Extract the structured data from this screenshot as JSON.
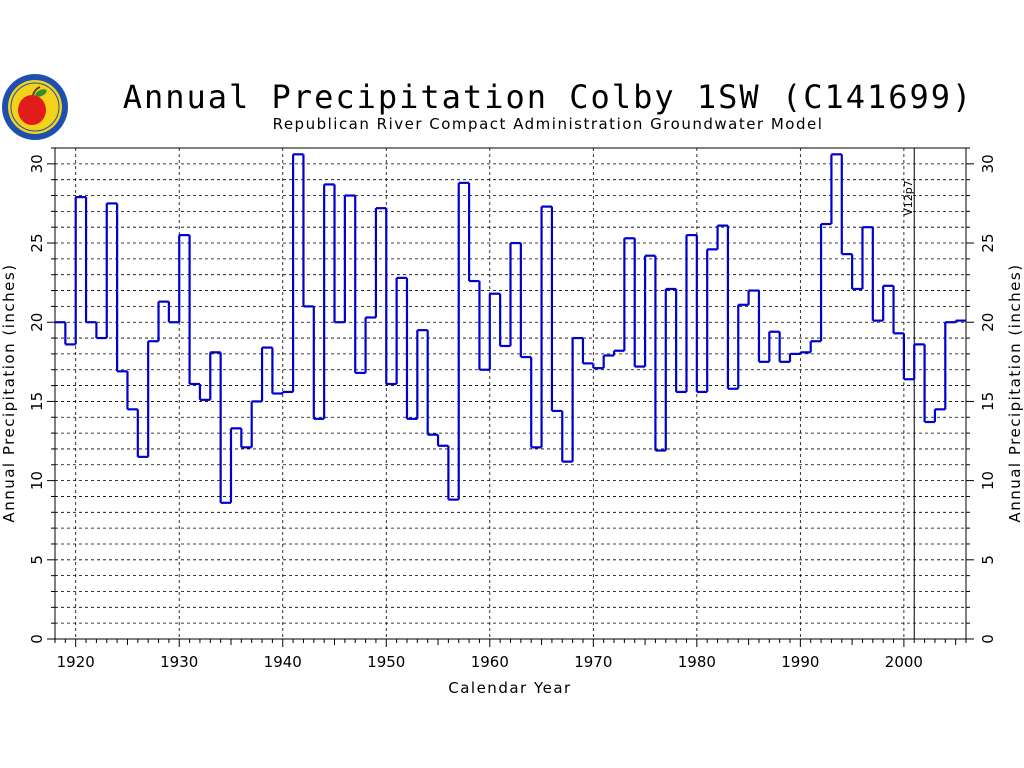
{
  "chart_data": {
    "type": "line",
    "style": "step",
    "title": "Annual Precipitation Colby 1SW (C141699)",
    "subtitle": "Republican River Compact Administration Groundwater Model",
    "xlabel": "Calendar Year",
    "ylabel": "Annual Precipitation (inches)",
    "xlim": [
      1918,
      2006
    ],
    "ylim": [
      0,
      31
    ],
    "x_ticks": [
      "1920",
      "1930",
      "1940",
      "1950",
      "1960",
      "1970",
      "1980",
      "1990",
      "2000"
    ],
    "y_ticks": [
      "0",
      "5",
      "10",
      "15",
      "20",
      "25",
      "30"
    ],
    "grid": true,
    "annotation": {
      "text": "V12p7",
      "x": 2001
    },
    "series": [
      {
        "name": "Annual Precipitation",
        "color": "#0000cc",
        "x": [
          1918,
          1919,
          1920,
          1921,
          1922,
          1923,
          1924,
          1925,
          1926,
          1927,
          1928,
          1929,
          1930,
          1931,
          1932,
          1933,
          1934,
          1935,
          1936,
          1937,
          1938,
          1939,
          1940,
          1941,
          1942,
          1943,
          1944,
          1945,
          1946,
          1947,
          1948,
          1949,
          1950,
          1951,
          1952,
          1953,
          1954,
          1955,
          1956,
          1957,
          1958,
          1959,
          1960,
          1961,
          1962,
          1963,
          1964,
          1965,
          1966,
          1967,
          1968,
          1969,
          1970,
          1971,
          1972,
          1973,
          1974,
          1975,
          1976,
          1977,
          1978,
          1979,
          1980,
          1981,
          1982,
          1983,
          1984,
          1985,
          1986,
          1987,
          1988,
          1989,
          1990,
          1991,
          1992,
          1993,
          1994,
          1995,
          1996,
          1997,
          1998,
          1999,
          2000,
          2001,
          2002,
          2003,
          2004,
          2005
        ],
        "values": [
          20.0,
          18.6,
          27.9,
          20.0,
          19.0,
          27.5,
          16.9,
          14.5,
          11.5,
          18.8,
          21.3,
          20.0,
          25.5,
          16.1,
          15.1,
          18.1,
          8.6,
          13.3,
          12.1,
          15.0,
          18.4,
          15.5,
          15.6,
          30.6,
          21.0,
          13.9,
          28.7,
          20.0,
          28.0,
          16.8,
          20.3,
          27.2,
          16.1,
          22.8,
          13.9,
          19.5,
          12.9,
          12.2,
          8.8,
          28.8,
          22.6,
          17.0,
          21.8,
          18.5,
          25.0,
          17.8,
          12.1,
          27.3,
          14.4,
          11.2,
          19.0,
          17.4,
          17.1,
          17.9,
          18.2,
          25.3,
          17.2,
          24.2,
          11.9,
          22.1,
          15.6,
          25.5,
          15.6,
          24.6,
          26.1,
          15.8,
          21.1,
          22.0,
          17.5,
          19.4,
          17.5,
          18.0,
          18.1,
          18.8,
          26.2,
          30.6,
          24.3,
          22.1,
          26.0,
          20.1,
          22.3,
          19.3,
          16.4,
          18.6,
          13.7,
          14.5,
          20.0,
          20.1
        ]
      }
    ]
  },
  "logo": {
    "label": "logo"
  }
}
